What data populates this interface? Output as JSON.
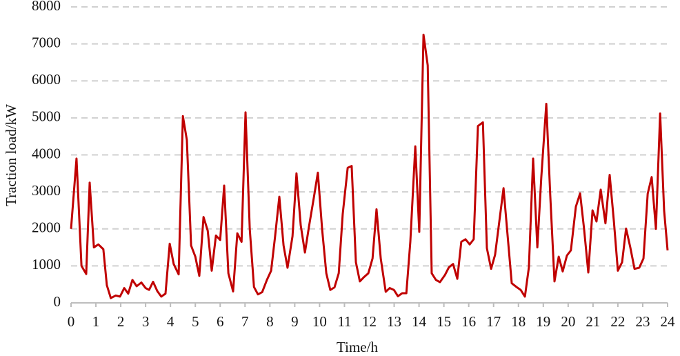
{
  "chart_data": {
    "type": "line",
    "x_label": "Time/h",
    "y_label": "Traction load/kW",
    "xlim": [
      0,
      24
    ],
    "xticks": [
      0,
      1,
      2,
      3,
      4,
      5,
      6,
      7,
      8,
      9,
      10,
      11,
      12,
      13,
      14,
      15,
      16,
      17,
      18,
      19,
      20,
      21,
      22,
      23,
      24
    ],
    "ylim": [
      0,
      8000
    ],
    "yticks": [
      0,
      1000,
      2000,
      3000,
      4000,
      5000,
      6000,
      7000,
      8000
    ],
    "grid": true,
    "x": [
      0,
      0.22,
      0.42,
      0.61,
      0.75,
      0.92,
      1.1,
      1.3,
      1.44,
      1.6,
      1.8,
      1.97,
      2.14,
      2.3,
      2.47,
      2.64,
      2.83,
      3.0,
      3.14,
      3.3,
      3.47,
      3.63,
      3.8,
      3.97,
      4.13,
      4.33,
      4.5,
      4.66,
      4.83,
      5.0,
      5.16,
      5.33,
      5.5,
      5.66,
      5.83,
      6.0,
      6.16,
      6.33,
      6.52,
      6.69,
      6.86,
      7.02,
      7.19,
      7.36,
      7.52,
      7.69,
      7.88,
      8.05,
      8.21,
      8.38,
      8.55,
      8.71,
      8.91,
      9.07,
      9.24,
      9.41,
      9.57,
      9.77,
      9.93,
      10.1,
      10.27,
      10.43,
      10.6,
      10.77,
      10.93,
      11.13,
      11.29,
      11.46,
      11.62,
      11.79,
      11.96,
      12.13,
      12.29,
      12.46,
      12.66,
      12.82,
      12.99,
      13.15,
      13.32,
      13.49,
      13.65,
      13.85,
      14.01,
      14.18,
      14.35,
      14.51,
      14.68,
      14.84,
      15.04,
      15.2,
      15.37,
      15.54,
      15.7,
      15.87,
      16.04,
      16.2,
      16.37,
      16.57,
      16.73,
      16.9,
      17.06,
      17.23,
      17.4,
      17.56,
      17.73,
      17.92,
      18.09,
      18.26,
      18.42,
      18.59,
      18.76,
      18.92,
      19.12,
      19.28,
      19.45,
      19.62,
      19.78,
      19.95,
      20.11,
      20.31,
      20.48,
      20.64,
      20.81,
      20.98,
      21.14,
      21.31,
      21.5,
      21.67,
      21.84,
      22.0,
      22.17,
      22.33,
      22.5,
      22.67,
      22.86,
      23.03,
      23.2,
      23.36,
      23.53,
      23.7,
      23.86,
      24.0
    ],
    "series": [
      {
        "color": "#c00000",
        "values": [
          2000,
          3900,
          1000,
          780,
          3250,
          1500,
          1580,
          1450,
          480,
          130,
          200,
          170,
          400,
          250,
          620,
          450,
          550,
          400,
          350,
          570,
          320,
          170,
          250,
          1600,
          1050,
          770,
          5050,
          4400,
          1550,
          1250,
          730,
          2320,
          1950,
          870,
          1820,
          1700,
          3170,
          800,
          310,
          1880,
          1650,
          5150,
          2000,
          430,
          230,
          290,
          620,
          870,
          1800,
          2870,
          1550,
          950,
          1800,
          3500,
          2100,
          1360,
          2050,
          2850,
          3520,
          2000,
          800,
          350,
          420,
          800,
          2400,
          3650,
          3700,
          1100,
          580,
          700,
          800,
          1200,
          2530,
          1200,
          300,
          400,
          350,
          180,
          260,
          260,
          1650,
          4230,
          1920,
          7250,
          6420,
          800,
          620,
          560,
          750,
          960,
          1050,
          650,
          1650,
          1720,
          1580,
          1720,
          4780,
          4880,
          1480,
          920,
          1300,
          2200,
          3100,
          1850,
          530,
          430,
          350,
          170,
          960,
          3900,
          1500,
          3400,
          5380,
          2900,
          580,
          1250,
          850,
          1280,
          1420,
          2600,
          2960,
          2000,
          820,
          2500,
          2200,
          3060,
          2150,
          3460,
          2200,
          870,
          1100,
          2010,
          1500,
          920,
          950,
          1200,
          2950,
          3400,
          2000,
          5120,
          2500,
          1420
        ]
      }
    ]
  }
}
